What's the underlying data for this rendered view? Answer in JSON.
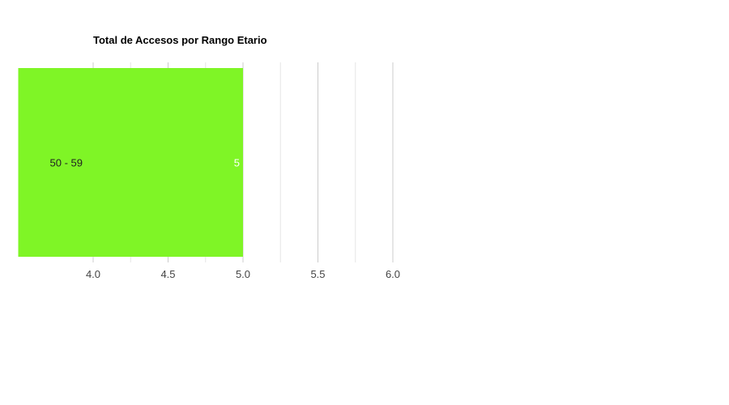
{
  "chart_data": {
    "type": "bar",
    "orientation": "horizontal",
    "title": "Total de Accesos por Rango Etario",
    "categories": [
      "50 - 59"
    ],
    "values": [
      5
    ],
    "data_labels": [
      "5"
    ],
    "xlim": [
      3.5,
      6.0
    ],
    "x_ticks": [
      4.0,
      4.5,
      5.0,
      5.5,
      6.0
    ],
    "x_tick_labels": [
      "4.0",
      "4.5",
      "5.0",
      "5.5",
      "6.0"
    ],
    "xlabel": "",
    "ylabel": "",
    "grid": true,
    "bar_color": "#7ff526",
    "grid_color": "#cccccc",
    "minor_grid_color": "#e6e6e6"
  }
}
